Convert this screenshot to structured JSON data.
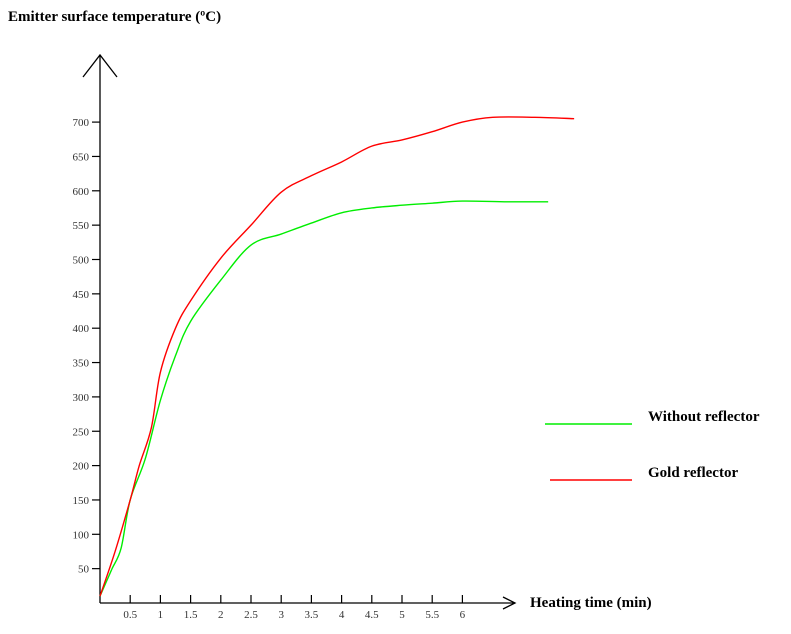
{
  "chart_data": {
    "type": "line",
    "title": "",
    "ylabel": "Emitter surface temperature (ºC)",
    "xlabel": "Heating time (min)",
    "xlim": [
      0,
      8
    ],
    "ylim": [
      0,
      750
    ],
    "x_ticks": [
      "0.5",
      "1",
      "1.5",
      "2",
      "2.5",
      "3",
      "3.5",
      "4",
      "4.5",
      "5",
      "5.5",
      "6"
    ],
    "x_tick_values": [
      0.5,
      1,
      1.5,
      2,
      2.5,
      3,
      3.5,
      4,
      4.5,
      5,
      5.5,
      6
    ],
    "y_ticks": [
      "50",
      "100",
      "150",
      "200",
      "250",
      "300",
      "350",
      "400",
      "450",
      "500",
      "550",
      "600",
      "650",
      "700"
    ],
    "y_tick_values": [
      50,
      100,
      150,
      200,
      250,
      300,
      350,
      400,
      450,
      500,
      550,
      600,
      650,
      700
    ],
    "grid": false,
    "legend_position": "right",
    "series": [
      {
        "name": "Without reflector",
        "color": "#00ee00",
        "x": [
          0,
          0.1,
          0.2,
          0.35,
          0.5,
          0.75,
          1,
          1.25,
          1.5,
          2,
          2.5,
          3,
          3.5,
          4,
          4.5,
          5,
          5.5,
          6,
          6.75,
          7.42
        ],
        "y": [
          10,
          30,
          50,
          80,
          150,
          210,
          295,
          360,
          410,
          470,
          521,
          537,
          553,
          568,
          575,
          579,
          582,
          585,
          584,
          584
        ]
      },
      {
        "name": "Gold reflector",
        "color": "#ff0000",
        "x": [
          0,
          0.25,
          0.5,
          0.65,
          0.85,
          1,
          1.25,
          1.5,
          2,
          2.5,
          3,
          3.5,
          4,
          4.5,
          5,
          5.5,
          6,
          6.5,
          7.2,
          7.85
        ],
        "y": [
          10,
          75,
          150,
          200,
          255,
          336,
          400,
          440,
          502,
          550,
          598,
          622,
          642,
          665,
          674,
          686,
          700,
          707,
          707,
          705
        ]
      }
    ]
  }
}
